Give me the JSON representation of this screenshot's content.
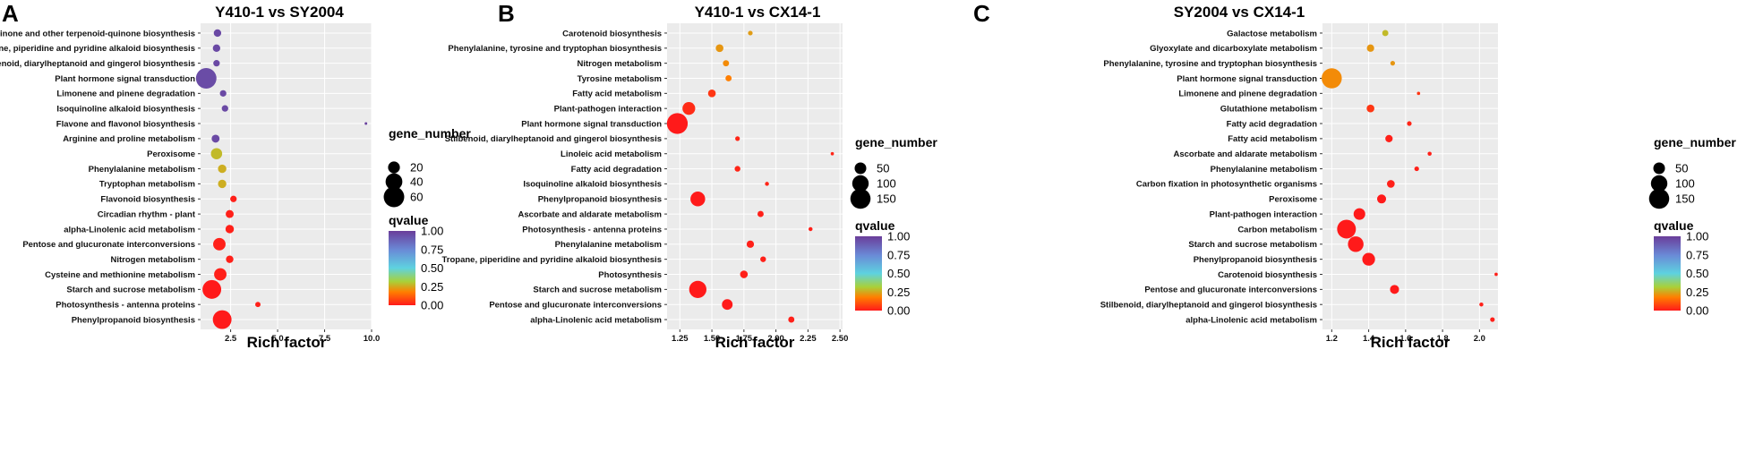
{
  "chart_data": [
    {
      "type": "scatter",
      "panel": "A",
      "title": "Y410-1 vs SY2004",
      "xlabel": "Rich factor",
      "xlim": [
        0.9,
        10.0
      ],
      "xticks": [
        2.5,
        5.0,
        7.5,
        10.0
      ],
      "xtick_labels": [
        "2.5",
        "5.0",
        "7.5",
        "10.0"
      ],
      "categories": [
        "Ubiquinone and other terpenoid-quinone biosynthesis",
        "Tropane, piperidine and pyridine alkaloid biosynthesis",
        "Stilbenoid, diarylheptanoid and gingerol biosynthesis",
        "Plant hormone signal transduction",
        "Limonene and pinene degradation",
        "Isoquinoline alkaloid biosynthesis",
        "Flavone and flavonol biosynthesis",
        "Arginine and proline metabolism",
        "Peroxisome",
        "Phenylalanine metabolism",
        "Tryptophan metabolism",
        "Flavonoid biosynthesis",
        "Circadian rhythm - plant",
        "alpha-Linolenic acid metabolism",
        "Pentose and glucuronate interconversions",
        "Nitrogen metabolism",
        "Cysteine and methionine metabolism",
        "Starch and sucrose metabolism",
        "Photosynthesis - antenna proteins",
        "Phenylpropanoid biosynthesis"
      ],
      "rich_factor": [
        1.8,
        1.75,
        1.75,
        1.2,
        2.1,
        2.2,
        9.7,
        1.7,
        1.75,
        2.05,
        2.05,
        2.65,
        2.45,
        2.45,
        1.9,
        2.45,
        1.95,
        1.5,
        3.95,
        2.05
      ],
      "gene_number": [
        8,
        8,
        6,
        60,
        6,
        6,
        1,
        9,
        18,
        10,
        10,
        6,
        9,
        10,
        22,
        8,
        22,
        50,
        4,
        50
      ],
      "qvalue": [
        0.96,
        0.96,
        0.96,
        0.95,
        0.96,
        0.96,
        0.98,
        0.96,
        0.28,
        0.26,
        0.26,
        0.01,
        0.01,
        0.01,
        0.01,
        0.01,
        0.01,
        0.0,
        0.01,
        0.0
      ],
      "legend": {
        "size_title": "gene_number",
        "size_values": [
          20,
          40,
          60
        ],
        "size_labels": [
          "20",
          "40",
          "60"
        ],
        "color_title": "qvalue",
        "color_ticks": [
          1.0,
          0.75,
          0.5,
          0.25,
          0.0
        ],
        "color_labels": [
          "1.00",
          "0.75",
          "0.50",
          "0.25",
          "0.00"
        ]
      }
    },
    {
      "type": "scatter",
      "panel": "B",
      "title": "Y410-1 vs CX14-1",
      "xlabel": "Rich factor",
      "xlim": [
        1.15,
        2.52
      ],
      "xticks": [
        1.25,
        1.5,
        1.75,
        2.0,
        2.25,
        2.5
      ],
      "xtick_labels": [
        "1.25",
        "1.50",
        "1.75",
        "2.00",
        "2.25",
        "2.50"
      ],
      "categories": [
        "Carotenoid biosynthesis",
        "Phenylalanine, tyrosine and tryptophan biosynthesis",
        "Nitrogen metabolism",
        "Tyrosine metabolism",
        "Fatty acid metabolism",
        "Plant-pathogen interaction",
        "Plant hormone signal transduction",
        "Stilbenoid, diarylheptanoid and gingerol biosynthesis",
        "Linoleic acid metabolism",
        "Fatty acid degradation",
        "Isoquinoline alkaloid biosynthesis",
        "Phenylpropanoid biosynthesis",
        "Ascorbate and aldarate metabolism",
        "Photosynthesis - antenna proteins",
        "Phenylalanine metabolism",
        "Tropane, piperidine and pyridine alkaloid biosynthesis",
        "Photosynthesis",
        "Starch and sucrose metabolism",
        "Pentose and glucuronate interconversions",
        "alpha-Linolenic acid metabolism"
      ],
      "rich_factor": [
        1.8,
        1.56,
        1.61,
        1.63,
        1.5,
        1.32,
        1.23,
        1.7,
        2.44,
        1.7,
        1.93,
        1.39,
        1.88,
        2.27,
        1.8,
        1.9,
        1.75,
        1.39,
        1.62,
        2.12
      ],
      "gene_number": [
        8,
        22,
        14,
        14,
        22,
        60,
        160,
        8,
        4,
        12,
        6,
        80,
        14,
        6,
        20,
        12,
        22,
        110,
        42,
        14
      ],
      "qvalue": [
        0.23,
        0.22,
        0.2,
        0.18,
        0.05,
        0.03,
        0.0,
        0.02,
        0.02,
        0.02,
        0.02,
        0.0,
        0.01,
        0.01,
        0.01,
        0.01,
        0.01,
        0.0,
        0.0,
        0.01
      ],
      "legend": {
        "size_title": "gene_number",
        "size_values": [
          50,
          100,
          150
        ],
        "size_labels": [
          "50",
          "100",
          "150"
        ],
        "color_title": "qvalue",
        "color_ticks": [
          1.0,
          0.75,
          0.5,
          0.25,
          0.0
        ],
        "color_labels": [
          "1.00",
          "0.75",
          "0.50",
          "0.25",
          "0.00"
        ]
      }
    },
    {
      "type": "scatter",
      "panel": "C",
      "title": "SY2004 vs CX14-1",
      "xlabel": "Rich factor",
      "xlim": [
        1.15,
        2.1
      ],
      "xticks": [
        1.2,
        1.4,
        1.6,
        1.8,
        2.0
      ],
      "xtick_labels": [
        "1.2",
        "1.4",
        "1.6",
        "1.8",
        "2.0"
      ],
      "categories": [
        "Galactose metabolism",
        "Glyoxylate and dicarboxylate metabolism",
        "Phenylalanine, tyrosine and tryptophan biosynthesis",
        "Plant hormone signal transduction",
        "Limonene and pinene degradation",
        "Glutathione metabolism",
        "Fatty acid degradation",
        "Fatty acid metabolism",
        "Ascorbate and aldarate metabolism",
        "Phenylalanine metabolism",
        "Carbon fixation in photosynthetic organisms",
        "Peroxisome",
        "Plant-pathogen interaction",
        "Carbon metabolism",
        "Starch and sucrose metabolism",
        "Phenylpropanoid biosynthesis",
        "Carotenoid biosynthesis",
        "Pentose and glucuronate interconversions",
        "Stilbenoid, diarylheptanoid and gingerol biosynthesis",
        "alpha-Linolenic acid metabolism"
      ],
      "rich_factor": [
        1.49,
        1.41,
        1.53,
        1.2,
        1.67,
        1.41,
        1.62,
        1.51,
        1.73,
        1.66,
        1.52,
        1.47,
        1.35,
        1.28,
        1.33,
        1.4,
        2.09,
        1.54,
        2.01,
        2.07
      ],
      "gene_number": [
        14,
        20,
        8,
        150,
        4,
        22,
        8,
        20,
        6,
        8,
        22,
        30,
        50,
        130,
        90,
        60,
        4,
        30,
        6,
        8
      ],
      "qvalue": [
        0.28,
        0.22,
        0.22,
        0.2,
        0.05,
        0.05,
        0.02,
        0.01,
        0.01,
        0.01,
        0.01,
        0.0,
        0.0,
        0.0,
        0.0,
        0.0,
        0.01,
        0.0,
        0.01,
        0.01
      ],
      "legend": {
        "size_title": "gene_number",
        "size_values": [
          50,
          100,
          150
        ],
        "size_labels": [
          "50",
          "100",
          "150"
        ],
        "color_title": "qvalue",
        "color_ticks": [
          1.0,
          0.75,
          0.5,
          0.25,
          0.0
        ],
        "color_labels": [
          "1.00",
          "0.75",
          "0.50",
          "0.25",
          "0.00"
        ]
      }
    }
  ],
  "colors": {
    "panel_bg": "#ebebeb",
    "grid": "#ffffff",
    "gradient": [
      "#ff1a1a",
      "#ff7f00",
      "#a8d13a",
      "#5ed2e0",
      "#6a89d6",
      "#6a3d9a"
    ]
  }
}
